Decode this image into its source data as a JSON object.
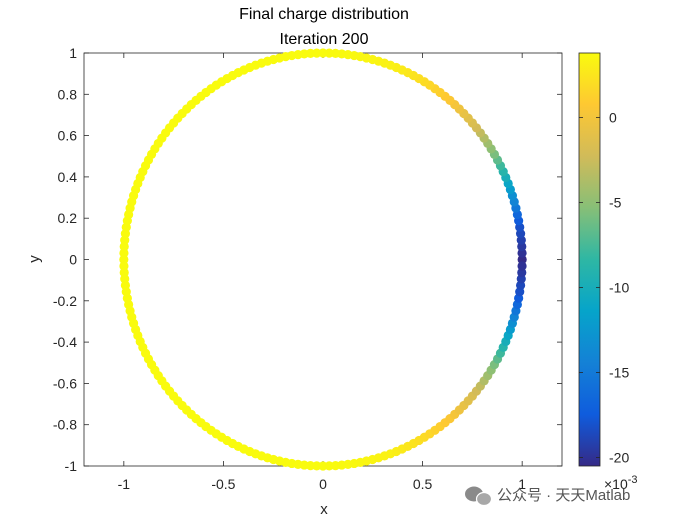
{
  "chart_data": {
    "type": "scatter",
    "title": "Final charge distribution",
    "subtitle": "Iteration 200",
    "xlabel": "x",
    "ylabel": "y",
    "xlim": [
      -1.2,
      1.2
    ],
    "ylim": [
      -1,
      1
    ],
    "xticks": [
      -1,
      -0.5,
      0,
      0.5,
      1
    ],
    "xtick_labels": [
      "-1",
      "-0.5",
      "0",
      "0.5",
      "1"
    ],
    "yticks": [
      1,
      0.8,
      0.6,
      0.4,
      0.2,
      0,
      -0.2,
      -0.4,
      -0.6,
      -0.8,
      -1
    ],
    "ytick_labels": [
      "1",
      "0.8",
      "0.6",
      "0.4",
      "0.2",
      "0",
      "-0.2",
      "-0.4",
      "-0.6",
      "-0.8",
      "-1"
    ],
    "grid": false,
    "colormap": "parula",
    "points_description": "200 charges evenly spaced on the unit circle; color = charge value",
    "n_points": 200,
    "charge_samples": {
      "angle_deg": [
        0,
        10,
        20,
        30,
        40,
        50,
        60,
        70,
        80,
        90,
        180,
        270,
        280,
        290,
        300,
        310,
        320,
        330,
        340,
        350
      ],
      "value": [
        -0.0205,
        -0.018,
        -0.012,
        -0.006,
        -0.002,
        0.0005,
        0.002,
        0.0032,
        0.0036,
        0.0038,
        0.0038,
        0.0038,
        0.0036,
        0.0032,
        0.002,
        0.0005,
        -0.002,
        -0.006,
        -0.012,
        -0.018
      ]
    },
    "colorbar": {
      "range": [
        -0.0205,
        0.0038
      ],
      "ticks": [
        0,
        -5,
        -10,
        -15,
        -20
      ],
      "tick_labels": [
        "0",
        "-5",
        "-10",
        "-15",
        "-20"
      ],
      "exponent_label": "×10",
      "exponent_power": "-3"
    }
  },
  "watermark": {
    "text": "公众号 · 天天Matlab",
    "icon": "wechat-icon"
  }
}
